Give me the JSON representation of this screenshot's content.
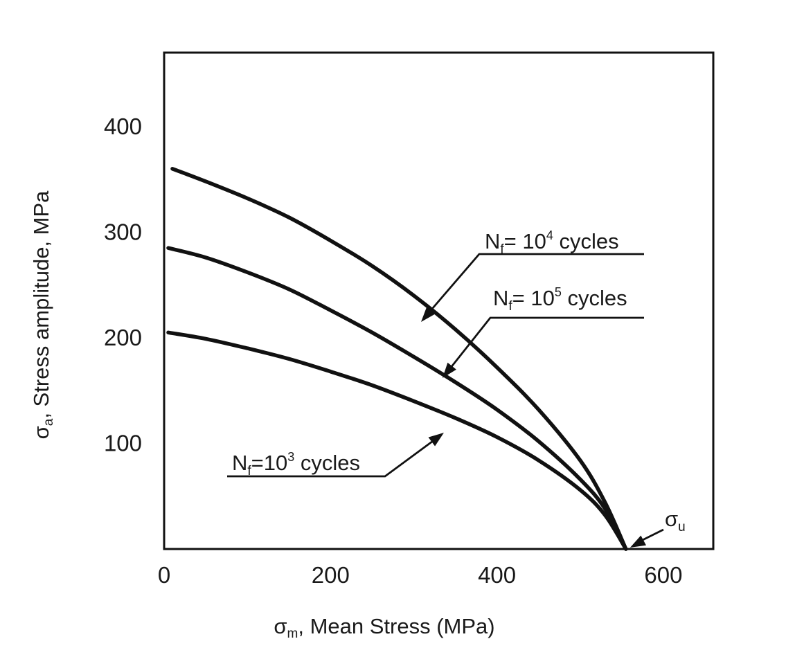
{
  "chart_data": {
    "type": "line",
    "title": "",
    "xlabel": {
      "symbol": "σ",
      "sub": "m",
      "text": ", Mean Stress (MPa)"
    },
    "ylabel": {
      "symbol": "σ",
      "sub": "a",
      "text": ", Stress amplitude, MPa"
    },
    "xlim": [
      0,
      660
    ],
    "ylim": [
      0,
      470
    ],
    "x_ticks": [
      0,
      200,
      400,
      600
    ],
    "y_ticks": [
      100,
      200,
      300,
      400
    ],
    "series": [
      {
        "name": "Nf= 10^4 cycles",
        "x": [
          10,
          50,
          100,
          150,
          200,
          250,
          300,
          350,
          400,
          450,
          500,
          530,
          555
        ],
        "y": [
          360,
          348,
          332,
          314,
          292,
          268,
          240,
          208,
          172,
          132,
          84,
          44,
          0
        ]
      },
      {
        "name": "Nf= 10^5 cycles",
        "x": [
          5,
          50,
          100,
          150,
          200,
          250,
          300,
          350,
          400,
          450,
          500,
          530,
          555
        ],
        "y": [
          285,
          276,
          262,
          246,
          226,
          205,
          182,
          158,
          132,
          102,
          66,
          38,
          0
        ]
      },
      {
        "name": "Nf=10^3 cycles",
        "x": [
          5,
          50,
          100,
          150,
          200,
          250,
          300,
          350,
          400,
          450,
          500,
          530,
          555
        ],
        "y": [
          205,
          199,
          190,
          180,
          168,
          155,
          140,
          124,
          106,
          84,
          56,
          32,
          0
        ]
      }
    ],
    "labels": [
      {
        "base": "N",
        "sub": "f",
        "mid": "= 10",
        "sup": "4",
        "tail": " cycles"
      },
      {
        "base": "N",
        "sub": "f",
        "mid": "= 10",
        "sup": "5",
        "tail": " cycles"
      },
      {
        "base": "N",
        "sub": "f",
        "mid": "=10",
        "sup": "3",
        "tail": " cycles"
      }
    ],
    "ultimate": {
      "symbol": "σ",
      "sub": "u",
      "x": 555,
      "y": 0
    },
    "grid": false,
    "legend": "none"
  }
}
